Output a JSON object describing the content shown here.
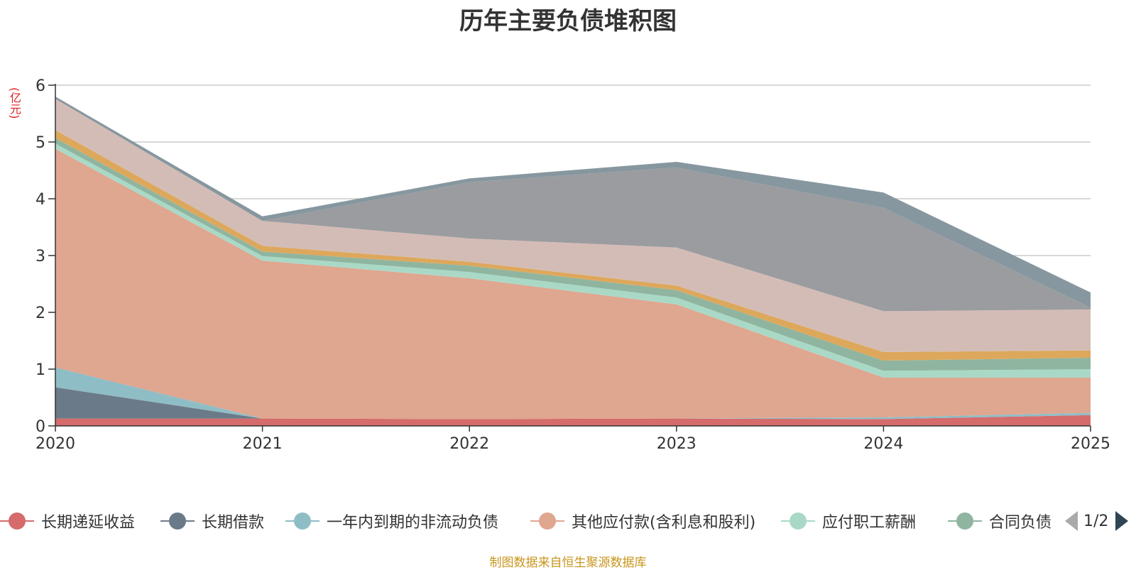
{
  "title": "历年主要负债堆积图",
  "unit": "(亿元)",
  "source": "制图数据来自恒生聚源数据库",
  "legend": {
    "items": [
      "长期递延收益",
      "长期借款",
      "一年内到期的非流动负债",
      "其他应付款(含利息和股利)",
      "应付职工薪酬",
      "合同负债"
    ],
    "page": "1/2"
  },
  "chart_data": {
    "type": "area",
    "stacked": true,
    "title": "历年主要负债堆积图",
    "ylabel": "(亿元)",
    "x": [
      "2020",
      "2021",
      "2022",
      "2023",
      "2024",
      "2025"
    ],
    "ylim": [
      0,
      6
    ],
    "yticks": [
      0,
      1,
      2,
      3,
      4,
      5,
      6
    ],
    "grid": true,
    "legend_position": "bottom",
    "series": [
      {
        "name": "长期递延收益",
        "color": "#d56b6b",
        "values": [
          0.13,
          0.13,
          0.12,
          0.13,
          0.12,
          0.19
        ]
      },
      {
        "name": "长期借款",
        "color": "#6b7a88",
        "values": [
          0.55,
          0.0,
          0.0,
          0.0,
          0.0,
          0.0
        ]
      },
      {
        "name": "一年内到期的非流动负债",
        "color": "#8fbdc6",
        "values": [
          0.35,
          0.0,
          0.0,
          0.0,
          0.03,
          0.04
        ]
      },
      {
        "name": "其他应付款(含利息和股利)",
        "color": "#dfa690",
        "values": [
          3.85,
          2.78,
          2.48,
          2.01,
          0.7,
          0.62
        ]
      },
      {
        "name": "应付职工薪酬",
        "color": "#a9d9c6",
        "values": [
          0.09,
          0.08,
          0.11,
          0.12,
          0.12,
          0.15
        ]
      },
      {
        "name": "合同负债",
        "color": "#8fb5a0",
        "values": [
          0.1,
          0.08,
          0.11,
          0.13,
          0.18,
          0.2
        ]
      },
      {
        "name": "",
        "color": "#dda85c",
        "values": [
          0.14,
          0.1,
          0.07,
          0.08,
          0.15,
          0.13
        ]
      },
      {
        "name": "",
        "color": "#d4bcb6",
        "values": [
          0.55,
          0.44,
          0.41,
          0.67,
          0.72,
          0.72
        ]
      },
      {
        "name": "",
        "color": "#9a9ca0",
        "values": [
          0.0,
          0.0,
          0.99,
          1.41,
          1.82,
          0.03
        ]
      },
      {
        "name": "",
        "color": "#87979f",
        "values": [
          0.04,
          0.08,
          0.07,
          0.1,
          0.27,
          0.27
        ]
      }
    ]
  }
}
